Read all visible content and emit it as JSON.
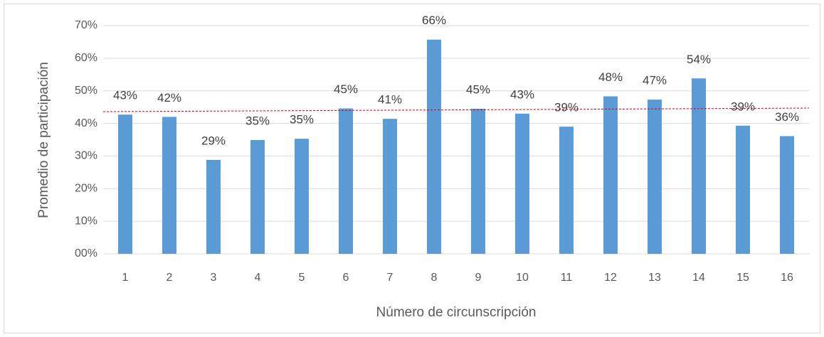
{
  "chart_data": {
    "type": "bar",
    "y_label": "Promedio de participación",
    "x_label": "Número de circunscripción",
    "categories": [
      "1",
      "2",
      "3",
      "4",
      "5",
      "6",
      "7",
      "8",
      "9",
      "10",
      "11",
      "12",
      "13",
      "14",
      "15",
      "16"
    ],
    "values": [
      42.7,
      42.0,
      28.8,
      34.9,
      35.3,
      44.6,
      41.4,
      65.7,
      44.5,
      43.0,
      39.0,
      48.3,
      47.3,
      53.8,
      39.3,
      36.1
    ],
    "value_labels": [
      "43%",
      "42%",
      "29%",
      "35%",
      "35%",
      "45%",
      "41%",
      "66%",
      "45%",
      "43%",
      "39%",
      "48%",
      "47%",
      "54%",
      "39%",
      "36%"
    ],
    "color": "#5b9bd5",
    "ylim": [
      0,
      70
    ],
    "yticks": [
      {
        "value": 0,
        "label": "00%"
      },
      {
        "value": 10,
        "label": "10%"
      },
      {
        "value": 20,
        "label": "20%"
      },
      {
        "value": 30,
        "label": "30%"
      },
      {
        "value": 40,
        "label": "40%"
      },
      {
        "value": 50,
        "label": "50%"
      },
      {
        "value": 60,
        "label": "60%"
      },
      {
        "value": 70,
        "label": "70%"
      }
    ],
    "grid": true,
    "reference_line": {
      "from": 43.6,
      "to": 44.7,
      "color": "#e00000",
      "dashed": true
    }
  }
}
